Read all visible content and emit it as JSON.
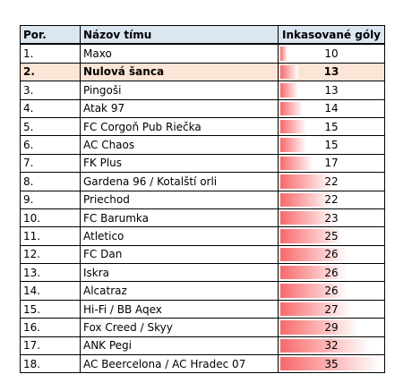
{
  "table": {
    "header": [
      "Por.",
      "Názov tímu",
      "Inkasované góly"
    ],
    "highlight_row": 1,
    "rows": [
      [
        "1.",
        "Maxo",
        10
      ],
      [
        "2.",
        "Nulová šanca",
        13
      ],
      [
        "3.",
        "Pingoši",
        13
      ],
      [
        "4.",
        "Atak 97",
        14
      ],
      [
        "5.",
        "FC Corgoň Pub Riečka",
        15
      ],
      [
        "6.",
        "AC Chaos",
        15
      ],
      [
        "7.",
        "FK Plus",
        17
      ],
      [
        "8.",
        "Gardena 96 / Kotalští orli",
        22
      ],
      [
        "9.",
        "Priechod",
        22
      ],
      [
        "10.",
        "FC Barumka",
        23
      ],
      [
        "11.",
        "Atletico",
        25
      ],
      [
        "12.",
        "FC Dan",
        26
      ],
      [
        "13.",
        "Iskra",
        26
      ],
      [
        "14.",
        "Alcatraz",
        26
      ],
      [
        "15.",
        "Hi-Fi / BB Aqex",
        27
      ],
      [
        "16.",
        "Fox Creed / Skyy",
        29
      ],
      [
        "17.",
        "ANK Pegi",
        32
      ],
      [
        "18.",
        "AC Beercelona / AC Hradec 07",
        35
      ]
    ]
  }
}
